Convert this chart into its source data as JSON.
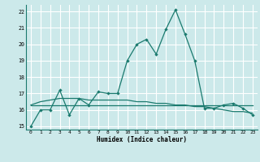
{
  "title": "",
  "xlabel": "Humidex (Indice chaleur)",
  "ylabel": "",
  "bg_color": "#cce9ea",
  "line_color": "#1a7a6e",
  "grid_color": "#ffffff",
  "xlim": [
    -0.5,
    23.5
  ],
  "ylim": [
    14.8,
    22.4
  ],
  "yticks": [
    15,
    16,
    17,
    18,
    19,
    20,
    21,
    22
  ],
  "xticks": [
    0,
    1,
    2,
    3,
    4,
    5,
    6,
    7,
    8,
    9,
    10,
    11,
    12,
    13,
    14,
    15,
    16,
    17,
    18,
    19,
    20,
    21,
    22,
    23
  ],
  "series1_x": [
    0,
    1,
    2,
    3,
    4,
    5,
    6,
    7,
    8,
    9,
    10,
    11,
    12,
    13,
    14,
    15,
    16,
    17,
    18,
    19,
    20,
    21,
    22,
    23
  ],
  "series1_y": [
    15.0,
    16.0,
    16.0,
    17.2,
    15.7,
    16.7,
    16.3,
    17.1,
    17.0,
    17.0,
    19.0,
    20.0,
    20.3,
    19.4,
    20.9,
    22.1,
    20.6,
    19.0,
    16.1,
    16.1,
    16.3,
    16.4,
    16.1,
    15.7
  ],
  "series2_x": [
    0,
    1,
    2,
    3,
    4,
    5,
    6,
    7,
    8,
    9,
    10,
    11,
    12,
    13,
    14,
    15,
    16,
    17,
    18,
    19,
    20,
    21,
    22,
    23
  ],
  "series2_y": [
    16.3,
    16.3,
    16.3,
    16.3,
    16.3,
    16.3,
    16.3,
    16.3,
    16.3,
    16.3,
    16.3,
    16.3,
    16.3,
    16.3,
    16.3,
    16.3,
    16.3,
    16.3,
    16.3,
    16.3,
    16.3,
    16.3,
    16.3,
    16.3
  ],
  "series3_x": [
    0,
    1,
    2,
    3,
    4,
    5,
    6,
    7,
    8,
    9,
    10,
    11,
    12,
    13,
    14,
    15,
    16,
    17,
    18,
    19,
    20,
    21,
    22,
    23
  ],
  "series3_y": [
    16.3,
    16.5,
    16.6,
    16.7,
    16.7,
    16.7,
    16.6,
    16.6,
    16.6,
    16.6,
    16.6,
    16.5,
    16.5,
    16.4,
    16.4,
    16.3,
    16.3,
    16.2,
    16.2,
    16.1,
    16.0,
    15.9,
    15.9,
    15.8
  ]
}
